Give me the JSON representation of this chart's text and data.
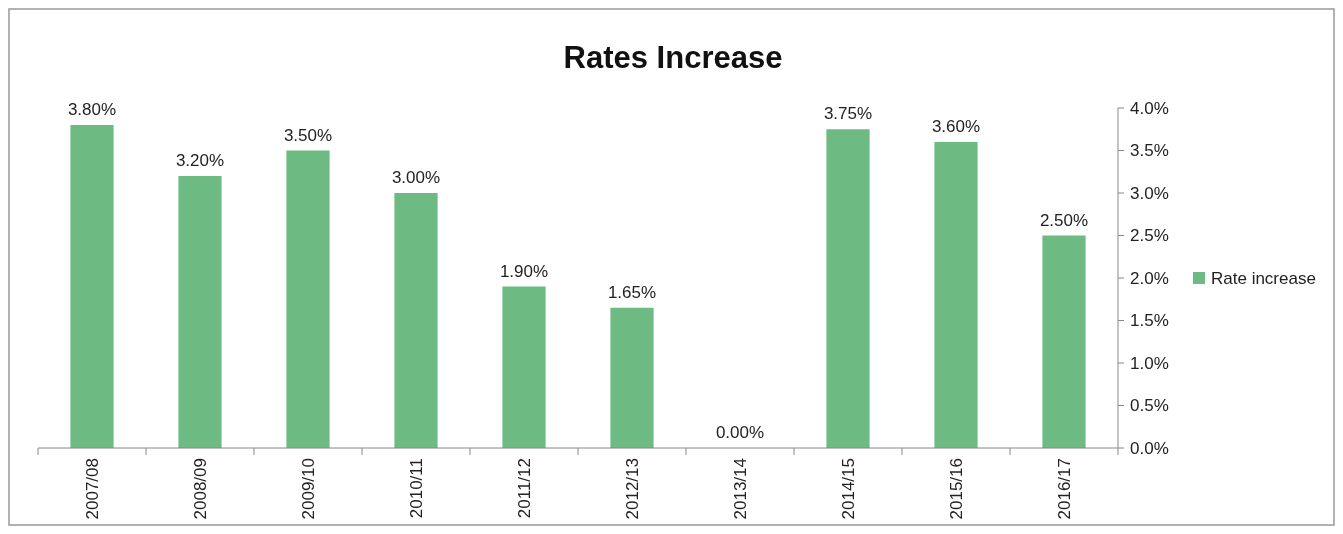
{
  "chart_data": {
    "type": "bar",
    "title": "Rates Increase",
    "categories": [
      "2007/08",
      "2008/09",
      "2009/10",
      "2010/11",
      "2011/12",
      "2012/13",
      "2013/14",
      "2014/15",
      "2015/16",
      "2016/17"
    ],
    "series": [
      {
        "name": "Rate increase",
        "color": "#6dbb82",
        "values": [
          3.8,
          3.2,
          3.5,
          3.0,
          1.9,
          1.65,
          0,
          3.75,
          3.6,
          2.5
        ],
        "value_labels": [
          "3.80%",
          "3.20%",
          "3.50%",
          "3.00%",
          "1.90%",
          "1.65%",
          "0.00%",
          "3.75%",
          "3.60%",
          "2.50%"
        ],
        "axis": "y2"
      }
    ],
    "y2lim": [
      0,
      4
    ],
    "y2ticks": [
      {
        "value": 0,
        "label": "0.0%"
      },
      {
        "value": 0.5,
        "label": "0.5%"
      },
      {
        "value": 1,
        "label": "1.0%"
      },
      {
        "value": 1.5,
        "label": "1.5%"
      },
      {
        "value": 2,
        "label": "2.0%"
      },
      {
        "value": 2.5,
        "label": "2.5%"
      },
      {
        "value": 3,
        "label": "3.0%"
      },
      {
        "value": 3.5,
        "label": "3.5%"
      },
      {
        "value": 4,
        "label": "4.0%"
      }
    ],
    "legend": "right",
    "grid": false
  }
}
